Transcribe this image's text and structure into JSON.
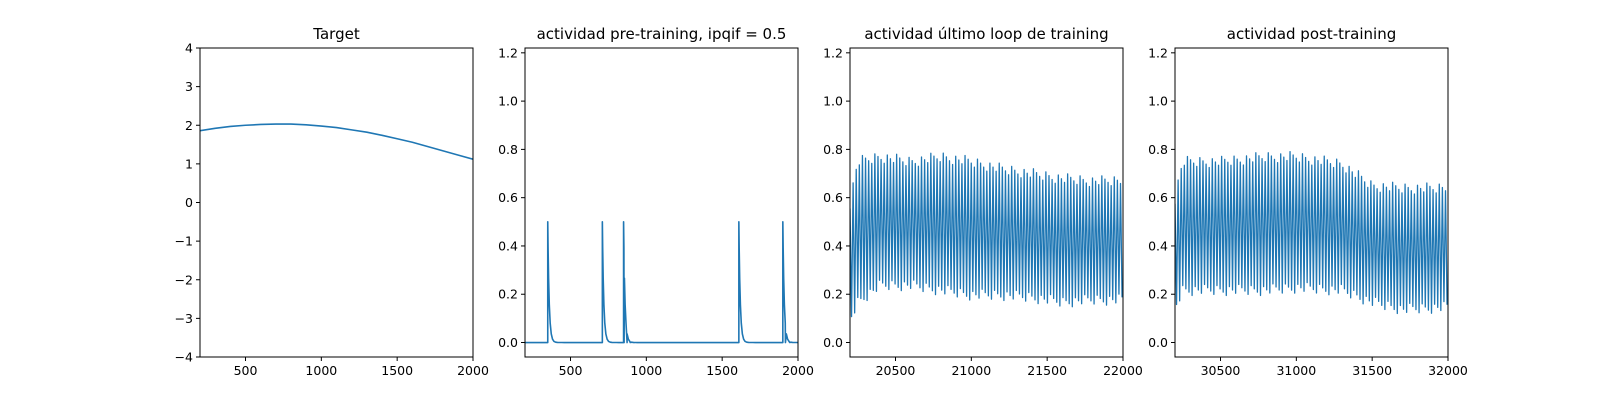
{
  "chart_data": [
    {
      "type": "line",
      "title": "Target",
      "xlim": [
        200,
        2000
      ],
      "ylim": [
        -4,
        4
      ],
      "xticks": [
        500,
        1000,
        1500,
        2000
      ],
      "yticks": [
        -4,
        -3,
        -2,
        -1,
        0,
        1,
        2,
        3,
        4
      ],
      "color": "#1f77b4",
      "series": [
        {
          "x": [
            200,
            300,
            400,
            500,
            600,
            700,
            750,
            800,
            900,
            1000,
            1100,
            1200,
            1300,
            1400,
            1500,
            1600,
            1700,
            1800,
            1900,
            2000
          ],
          "y": [
            1.86,
            1.92,
            1.97,
            2.0,
            2.02,
            2.03,
            2.03,
            2.03,
            2.01,
            1.98,
            1.94,
            1.88,
            1.82,
            1.74,
            1.65,
            1.56,
            1.45,
            1.34,
            1.23,
            1.12
          ]
        }
      ]
    },
    {
      "type": "line",
      "title": "actividad pre-training, ipqif = 0.5",
      "xlim": [
        200,
        2000
      ],
      "ylim": [
        -0.06,
        1.22
      ],
      "xticks": [
        500,
        1000,
        1500,
        2000
      ],
      "yticks": [
        0.0,
        0.2,
        0.4,
        0.6,
        0.8,
        1.0,
        1.2
      ],
      "color": "#1f77b4",
      "spikes": {
        "times": [
          350,
          710,
          850,
          1610,
          1900
        ],
        "peak": 0.5,
        "baseline": 0.0,
        "decay": 35,
        "end_x": 2000
      }
    },
    {
      "type": "line",
      "title": "actividad último loop de training",
      "xlim": [
        20200,
        22000
      ],
      "ylim": [
        -0.06,
        1.22
      ],
      "xticks": [
        20500,
        21000,
        21500,
        22000
      ],
      "yticks": [
        0.0,
        0.2,
        0.4,
        0.6,
        0.8,
        1.0,
        1.2
      ],
      "color": "#1f77b4",
      "oscillation": {
        "start_x": 20200,
        "end_x": 22000,
        "period": 20.5,
        "envelope": [
          {
            "x": 20200,
            "max": 0.58,
            "min": 0.1
          },
          {
            "x": 20250,
            "max": 0.75,
            "min": 0.17
          },
          {
            "x": 20400,
            "max": 0.77,
            "min": 0.24
          },
          {
            "x": 20600,
            "max": 0.75,
            "min": 0.24
          },
          {
            "x": 20800,
            "max": 0.77,
            "min": 0.22
          },
          {
            "x": 21000,
            "max": 0.75,
            "min": 0.2
          },
          {
            "x": 21200,
            "max": 0.72,
            "min": 0.2
          },
          {
            "x": 21400,
            "max": 0.7,
            "min": 0.19
          },
          {
            "x": 21600,
            "max": 0.68,
            "min": 0.17
          },
          {
            "x": 21800,
            "max": 0.67,
            "min": 0.18
          },
          {
            "x": 22000,
            "max": 0.67,
            "min": 0.18
          }
        ]
      }
    },
    {
      "type": "line",
      "title": "actividad post-training",
      "xlim": [
        30200,
        32000
      ],
      "ylim": [
        -0.06,
        1.22
      ],
      "xticks": [
        30500,
        31000,
        31500,
        32000
      ],
      "yticks": [
        0.0,
        0.2,
        0.4,
        0.6,
        0.8,
        1.0,
        1.2
      ],
      "color": "#1f77b4",
      "oscillation": {
        "start_x": 30200,
        "end_x": 32000,
        "period": 20.5,
        "envelope": [
          {
            "x": 30200,
            "max": 0.6,
            "min": 0.15
          },
          {
            "x": 30250,
            "max": 0.75,
            "min": 0.22
          },
          {
            "x": 30500,
            "max": 0.75,
            "min": 0.22
          },
          {
            "x": 30800,
            "max": 0.77,
            "min": 0.22
          },
          {
            "x": 31000,
            "max": 0.77,
            "min": 0.23
          },
          {
            "x": 31300,
            "max": 0.74,
            "min": 0.22
          },
          {
            "x": 31500,
            "max": 0.65,
            "min": 0.17
          },
          {
            "x": 31700,
            "max": 0.64,
            "min": 0.14
          },
          {
            "x": 32000,
            "max": 0.64,
            "min": 0.15
          }
        ]
      }
    }
  ]
}
